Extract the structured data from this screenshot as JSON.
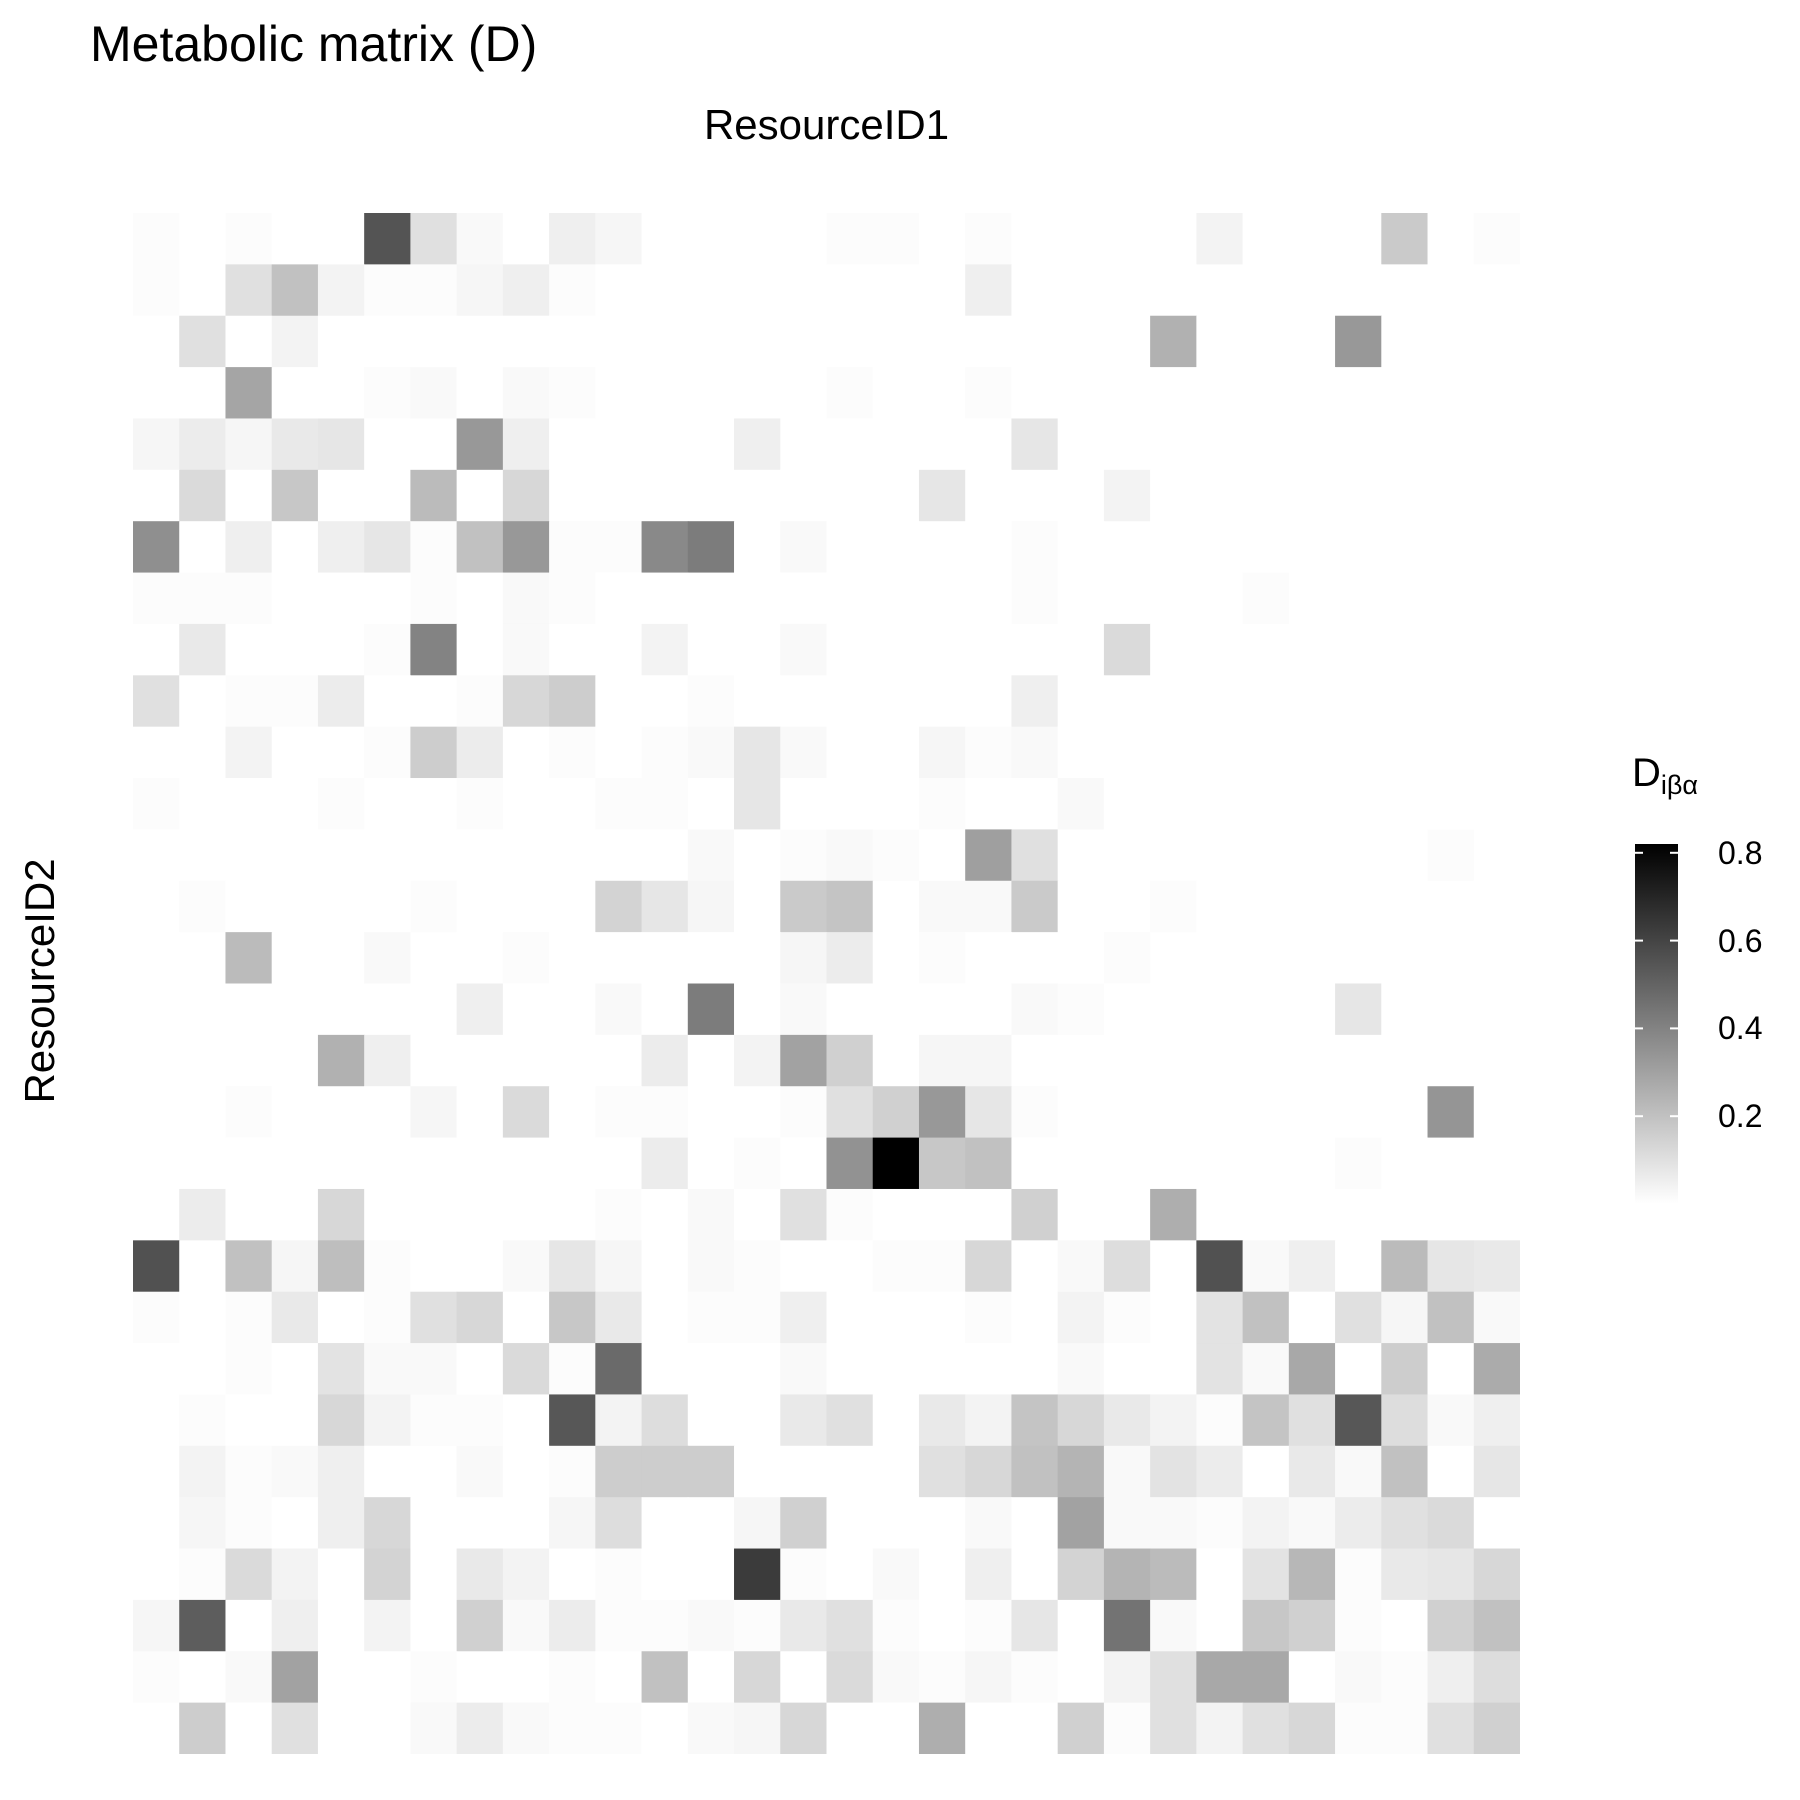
{
  "chart_data": {
    "type": "heatmap",
    "title": "Metabolic matrix (D)",
    "xlabel": "ResourceID1",
    "ylabel": "ResourceID2",
    "legend": {
      "title_main": "D",
      "title_sub": "iβα",
      "ticks": [
        "0.2",
        "0.4",
        "0.6",
        "0.8"
      ],
      "tick_values": [
        0.2,
        0.4,
        0.6,
        0.8
      ],
      "range": [
        0,
        0.82
      ],
      "colors": [
        "#ffffff",
        "#000000"
      ],
      "placement": "right"
    },
    "n_cols": 30,
    "n_rows": 30,
    "grid": false,
    "values": [
      [
        0.01,
        0,
        0.01,
        0,
        0,
        0.55,
        0.1,
        0.02,
        0,
        0.05,
        0.03,
        0,
        0,
        0,
        0,
        0.01,
        0.01,
        0,
        0.01,
        0,
        0,
        0,
        0,
        0.04,
        0,
        0,
        0,
        0.17,
        0,
        0.01
      ],
      [
        0.01,
        0,
        0.1,
        0.2,
        0.04,
        0.01,
        0.01,
        0.03,
        0.05,
        0.01,
        0,
        0,
        0,
        0,
        0,
        0,
        0,
        0,
        0.05,
        0,
        0,
        0,
        0,
        0,
        0,
        0,
        0,
        0,
        0,
        0
      ],
      [
        0,
        0.1,
        0,
        0.04,
        0,
        0,
        0,
        0,
        0,
        0,
        0,
        0,
        0,
        0,
        0,
        0,
        0,
        0,
        0,
        0,
        0,
        0,
        0.25,
        0,
        0,
        0,
        0.33,
        0,
        0,
        0
      ],
      [
        0,
        0,
        0.29,
        0,
        0,
        0.01,
        0.02,
        0,
        0.02,
        0.01,
        0,
        0,
        0,
        0,
        0,
        0.01,
        0,
        0,
        0.01,
        0,
        0,
        0,
        0,
        0,
        0,
        0,
        0,
        0,
        0,
        0
      ],
      [
        0.03,
        0.06,
        0.03,
        0.07,
        0.08,
        0,
        0,
        0.33,
        0.05,
        0,
        0,
        0,
        0,
        0.05,
        0,
        0,
        0,
        0,
        0,
        0.08,
        0,
        0,
        0,
        0,
        0,
        0,
        0,
        0,
        0,
        0
      ],
      [
        0,
        0.12,
        0,
        0.18,
        0,
        0,
        0.22,
        0,
        0.13,
        0,
        0,
        0,
        0,
        0,
        0,
        0,
        0,
        0.08,
        0,
        0,
        0,
        0.04,
        0,
        0,
        0,
        0,
        0,
        0,
        0,
        0
      ],
      [
        0.36,
        0,
        0.05,
        0,
        0.05,
        0.08,
        0.01,
        0.2,
        0.33,
        0.01,
        0.01,
        0.38,
        0.42,
        0,
        0.02,
        0,
        0,
        0,
        0,
        0.01,
        0,
        0,
        0,
        0,
        0,
        0,
        0,
        0,
        0,
        0
      ],
      [
        0.01,
        0.01,
        0.01,
        0,
        0,
        0,
        0.01,
        0,
        0.02,
        0.01,
        0,
        0,
        0,
        0,
        0,
        0,
        0,
        0,
        0,
        0.01,
        0,
        0,
        0,
        0,
        0.01,
        0,
        0,
        0,
        0,
        0
      ],
      [
        0,
        0.07,
        0,
        0,
        0,
        0.01,
        0.4,
        0,
        0.02,
        0,
        0,
        0.04,
        0,
        0,
        0.02,
        0,
        0,
        0,
        0,
        0,
        0,
        0.12,
        0,
        0,
        0,
        0,
        0,
        0,
        0,
        0
      ],
      [
        0.1,
        0,
        0.01,
        0.01,
        0.06,
        0,
        0,
        0.01,
        0.13,
        0.16,
        0,
        0,
        0.01,
        0,
        0,
        0,
        0,
        0,
        0,
        0.05,
        0,
        0,
        0,
        0,
        0,
        0,
        0,
        0,
        0,
        0
      ],
      [
        0,
        0,
        0.04,
        0,
        0,
        0.01,
        0.16,
        0.06,
        0,
        0.01,
        0,
        0.01,
        0.02,
        0.08,
        0.02,
        0,
        0,
        0.03,
        0.01,
        0.02,
        0,
        0,
        0,
        0,
        0,
        0,
        0,
        0,
        0,
        0
      ],
      [
        0.01,
        0,
        0,
        0,
        0.01,
        0,
        0,
        0.01,
        0,
        0,
        0.01,
        0.01,
        0,
        0.08,
        0,
        0,
        0,
        0.01,
        0,
        0,
        0.02,
        0,
        0,
        0,
        0,
        0,
        0,
        0,
        0,
        0
      ],
      [
        0,
        0,
        0,
        0,
        0,
        0,
        0,
        0,
        0,
        0,
        0,
        0,
        0.02,
        0,
        0.01,
        0.02,
        0.01,
        0,
        0.31,
        0.1,
        0,
        0,
        0,
        0,
        0,
        0,
        0,
        0,
        0.01,
        0
      ],
      [
        0,
        0.01,
        0,
        0,
        0,
        0,
        0.01,
        0,
        0,
        0,
        0.14,
        0.08,
        0.03,
        0,
        0.17,
        0.19,
        0,
        0.02,
        0.02,
        0.17,
        0,
        0,
        0.01,
        0,
        0,
        0,
        0,
        0,
        0,
        0
      ],
      [
        0,
        0,
        0.22,
        0,
        0,
        0.02,
        0,
        0,
        0.01,
        0,
        0,
        0,
        0,
        0,
        0.03,
        0.06,
        0,
        0.01,
        0,
        0,
        0,
        0.01,
        0,
        0,
        0,
        0,
        0,
        0,
        0,
        0
      ],
      [
        0,
        0,
        0,
        0,
        0,
        0,
        0,
        0.05,
        0,
        0,
        0.02,
        0,
        0.42,
        0,
        0.02,
        0,
        0,
        0,
        0,
        0.02,
        0.01,
        0,
        0,
        0,
        0,
        0,
        0.08,
        0,
        0,
        0
      ],
      [
        0,
        0,
        0,
        0,
        0.25,
        0.05,
        0,
        0,
        0,
        0,
        0,
        0.06,
        0,
        0.04,
        0.3,
        0.15,
        0,
        0.03,
        0.03,
        0,
        0,
        0,
        0,
        0,
        0,
        0,
        0,
        0,
        0,
        0
      ],
      [
        0,
        0,
        0.01,
        0,
        0,
        0,
        0.03,
        0,
        0.12,
        0,
        0.01,
        0.01,
        0,
        0,
        0.01,
        0.1,
        0.15,
        0.33,
        0.08,
        0.01,
        0,
        0,
        0,
        0,
        0,
        0,
        0,
        0,
        0.34,
        0
      ],
      [
        0,
        0,
        0,
        0,
        0,
        0,
        0,
        0,
        0,
        0,
        0,
        0.06,
        0,
        0.01,
        0,
        0.35,
        0.82,
        0.18,
        0.2,
        0,
        0,
        0,
        0,
        0,
        0,
        0,
        0.01,
        0,
        0,
        0
      ],
      [
        0,
        0.06,
        0,
        0,
        0.13,
        0,
        0,
        0,
        0,
        0,
        0.01,
        0,
        0.02,
        0,
        0.1,
        0.01,
        0,
        0,
        0,
        0.15,
        0,
        0,
        0.26,
        0,
        0,
        0,
        0,
        0,
        0,
        0
      ],
      [
        0.56,
        0,
        0.2,
        0.03,
        0.21,
        0.01,
        0,
        0,
        0.02,
        0.08,
        0.03,
        0,
        0.02,
        0.01,
        0,
        0,
        0.01,
        0.01,
        0.13,
        0,
        0.02,
        0.11,
        0,
        0.56,
        0.02,
        0.05,
        0,
        0.22,
        0.08,
        0.07
      ],
      [
        0.01,
        0,
        0.01,
        0.07,
        0,
        0.01,
        0.1,
        0.13,
        0,
        0.18,
        0.07,
        0,
        0.01,
        0.01,
        0.05,
        0,
        0,
        0,
        0.01,
        0,
        0.04,
        0.01,
        0,
        0.09,
        0.2,
        0,
        0.1,
        0.03,
        0.2,
        0.02
      ],
      [
        0,
        0,
        0.01,
        0,
        0.09,
        0.02,
        0.02,
        0,
        0.12,
        0.01,
        0.48,
        0,
        0,
        0,
        0.02,
        0,
        0,
        0,
        0,
        0,
        0.02,
        0,
        0,
        0.09,
        0.02,
        0.28,
        0,
        0.16,
        0,
        0.27
      ],
      [
        0,
        0.01,
        0,
        0,
        0.13,
        0.04,
        0.01,
        0.01,
        0,
        0.54,
        0.04,
        0.11,
        0,
        0,
        0.07,
        0.1,
        0,
        0.07,
        0.04,
        0.19,
        0.13,
        0.07,
        0.04,
        0.01,
        0.19,
        0.1,
        0.54,
        0.11,
        0.02,
        0.05
      ],
      [
        0,
        0.04,
        0.01,
        0.02,
        0.05,
        0,
        0,
        0.02,
        0,
        0.01,
        0.16,
        0.16,
        0.16,
        0,
        0,
        0,
        0,
        0.1,
        0.13,
        0.2,
        0.24,
        0.02,
        0.09,
        0.06,
        0,
        0.07,
        0.02,
        0.2,
        0,
        0.08
      ],
      [
        0,
        0.03,
        0.01,
        0,
        0.05,
        0.13,
        0,
        0,
        0,
        0.03,
        0.11,
        0,
        0,
        0.03,
        0.15,
        0,
        0,
        0,
        0.02,
        0,
        0.3,
        0.02,
        0.02,
        0.01,
        0.04,
        0.02,
        0.06,
        0.1,
        0.12,
        0
      ],
      [
        0,
        0.01,
        0.12,
        0.04,
        0,
        0.14,
        0,
        0.07,
        0.04,
        0,
        0.01,
        0,
        0,
        0.63,
        0.01,
        0,
        0.02,
        0,
        0.05,
        0,
        0.14,
        0.24,
        0.22,
        0,
        0.09,
        0.23,
        0.01,
        0.07,
        0.08,
        0.13
      ],
      [
        0.03,
        0.52,
        0,
        0.05,
        0,
        0.04,
        0,
        0.15,
        0.02,
        0.06,
        0.01,
        0.01,
        0.02,
        0.01,
        0.07,
        0.1,
        0.01,
        0,
        0.01,
        0.08,
        0,
        0.45,
        0.02,
        0,
        0.18,
        0.15,
        0.01,
        0,
        0.15,
        0.2
      ],
      [
        0.01,
        0,
        0.02,
        0.3,
        0,
        0,
        0.01,
        0,
        0,
        0.01,
        0,
        0.2,
        0,
        0.13,
        0,
        0.12,
        0.02,
        0.01,
        0.03,
        0.01,
        0,
        0.04,
        0.1,
        0.28,
        0.28,
        0,
        0.02,
        0.01,
        0.05,
        0.11
      ],
      [
        0,
        0.16,
        0,
        0.1,
        0,
        0,
        0.02,
        0.06,
        0.02,
        0.01,
        0.01,
        0,
        0.02,
        0.03,
        0.13,
        0,
        0,
        0.26,
        0,
        0,
        0.15,
        0.01,
        0.1,
        0.04,
        0.1,
        0.13,
        0.01,
        0.01,
        0.1,
        0.15
      ]
    ]
  }
}
